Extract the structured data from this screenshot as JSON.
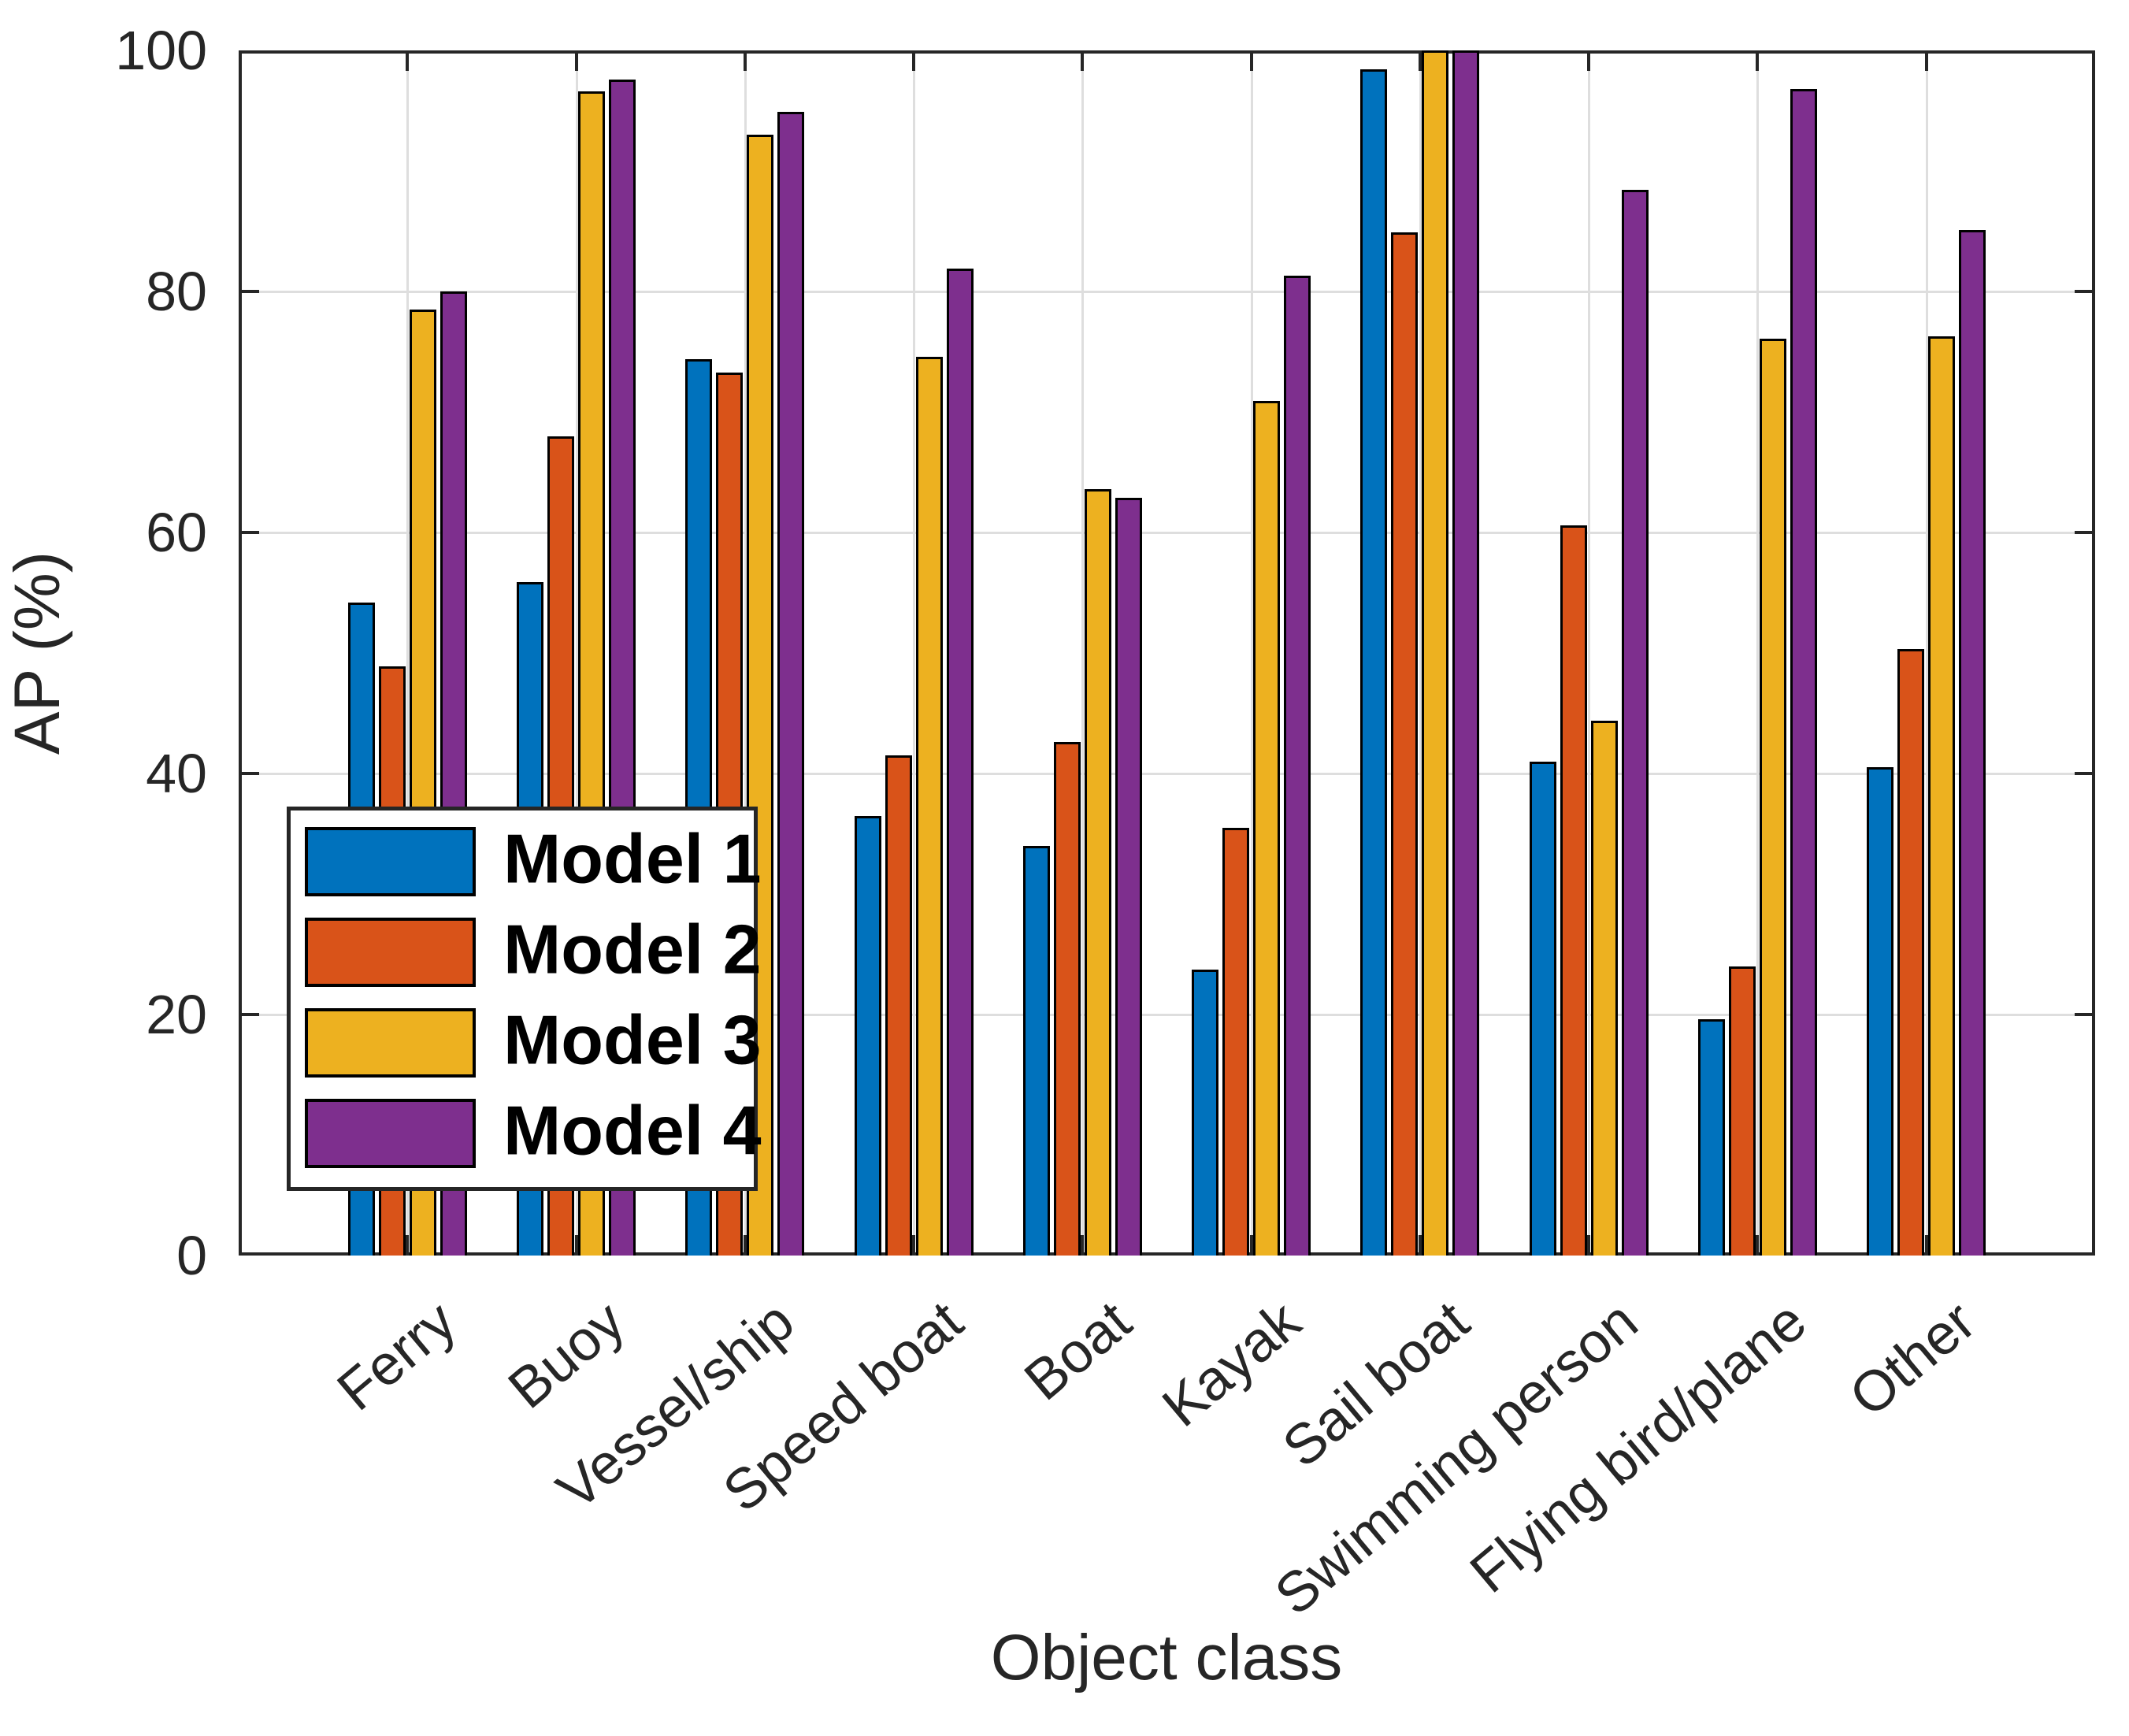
{
  "chart_data": {
    "type": "bar",
    "title": "",
    "xlabel": "Object class",
    "ylabel": "AP (%)",
    "ylim": [
      0,
      100
    ],
    "yticks": [
      0,
      20,
      40,
      60,
      80,
      100
    ],
    "grid": true,
    "legend_position": "inside-bottom-left",
    "categories": [
      "Ferry",
      "Buoy",
      "Vessel/ship",
      "Speed boat",
      "Boat",
      "Kayak",
      "Sail boat",
      "Swimming person",
      "Flying bird/plane",
      "Other"
    ],
    "series": [
      {
        "name": "Model 1",
        "color": "#0072BD",
        "values": [
          54.2,
          55.9,
          74.4,
          36.5,
          34.0,
          23.7,
          98.4,
          41.0,
          19.6,
          40.5
        ]
      },
      {
        "name": "Model 2",
        "color": "#D95319",
        "values": [
          48.9,
          68.0,
          73.3,
          41.5,
          42.6,
          35.5,
          84.9,
          60.6,
          24.0,
          50.3
        ]
      },
      {
        "name": "Model 3",
        "color": "#EDB120",
        "values": [
          78.5,
          96.6,
          93.0,
          74.6,
          63.6,
          70.9,
          100.0,
          44.4,
          76.1,
          76.3
        ]
      },
      {
        "name": "Model 4",
        "color": "#7E2F8E",
        "values": [
          80.0,
          97.6,
          94.9,
          81.9,
          62.9,
          81.3,
          100.0,
          88.4,
          96.8,
          85.1
        ]
      }
    ]
  },
  "axes": {
    "x_label": "Object class",
    "y_label": "AP (%)"
  },
  "legend": {
    "items": [
      "Model 1",
      "Model 2",
      "Model 3",
      "Model 4"
    ]
  },
  "style_colors": {
    "axis": "#262626",
    "grid": "#dedede",
    "bar_edge": "#000000",
    "background": "#ffffff"
  }
}
